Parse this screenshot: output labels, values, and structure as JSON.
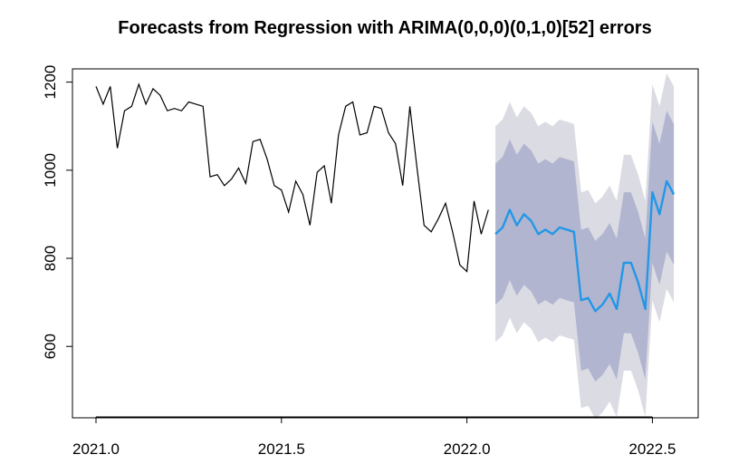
{
  "chart_data": {
    "type": "line",
    "title": "Forecasts from Regression with ARIMA(0,0,0)(0,1,0)[52] errors",
    "xlabel": "",
    "ylabel": "",
    "xlim": [
      2021.0,
      2022.56
    ],
    "ylim": [
      440,
      1230
    ],
    "xticks": [
      2021.0,
      2021.5,
      2022.0,
      2022.5
    ],
    "xtick_labels": [
      "2021.0",
      "2021.5",
      "2022.0",
      "2022.5"
    ],
    "yticks": [
      600,
      800,
      1000,
      1200
    ],
    "ytick_labels": [
      "600",
      "800",
      "1000",
      "1200"
    ],
    "grid": false,
    "legend": "none",
    "series": [
      {
        "role": "history",
        "color": "#000000",
        "x": [
          2021.0,
          2021.0192,
          2021.0385,
          2021.0577,
          2021.0769,
          2021.0962,
          2021.1154,
          2021.1346,
          2021.1538,
          2021.1731,
          2021.1923,
          2021.2115,
          2021.2308,
          2021.25,
          2021.2692,
          2021.2885,
          2021.3077,
          2021.3269,
          2021.3462,
          2021.3654,
          2021.3846,
          2021.4038,
          2021.4231,
          2021.4423,
          2021.4615,
          2021.4808,
          2021.5,
          2021.5192,
          2021.5385,
          2021.5577,
          2021.5769,
          2021.5962,
          2021.6154,
          2021.6346,
          2021.6538,
          2021.6731,
          2021.6923,
          2021.7115,
          2021.7308,
          2021.75,
          2021.7692,
          2021.7885,
          2021.8077,
          2021.8269,
          2021.8462,
          2021.8654,
          2021.8846,
          2021.9038,
          2021.9231,
          2021.9423,
          2021.9615,
          2021.9808,
          2022.0,
          2022.0192,
          2022.0385,
          2022.0577
        ],
        "y": [
          1190,
          1150,
          1190,
          1050,
          1135,
          1145,
          1195,
          1150,
          1185,
          1170,
          1135,
          1140,
          1135,
          1155,
          1150,
          1145,
          985,
          990,
          965,
          980,
          1005,
          970,
          1065,
          1070,
          1025,
          965,
          955,
          905,
          975,
          945,
          875,
          995,
          1010,
          925,
          1080,
          1145,
          1155,
          1080,
          1085,
          1145,
          1140,
          1085,
          1060,
          965,
          1145,
          1005,
          875,
          860,
          890,
          925,
          860,
          785,
          770,
          930,
          855,
          910
        ]
      },
      {
        "role": "forecast",
        "color": "#2297E6",
        "x": [
          2022.0769,
          2022.0962,
          2022.1154,
          2022.1346,
          2022.1538,
          2022.1731,
          2022.1923,
          2022.2115,
          2022.2308,
          2022.25,
          2022.2692,
          2022.2885,
          2022.3077,
          2022.3269,
          2022.3462,
          2022.3654,
          2022.3846,
          2022.4038,
          2022.4231,
          2022.4423,
          2022.4615,
          2022.4808,
          2022.5,
          2022.5192,
          2022.5385,
          2022.5577
        ],
        "y": [
          855,
          870,
          910,
          875,
          900,
          885,
          855,
          865,
          855,
          870,
          865,
          860,
          705,
          710,
          680,
          695,
          720,
          685,
          790,
          790,
          745,
          685,
          950,
          900,
          975,
          945
        ],
        "lower80": [
          695,
          710,
          750,
          715,
          740,
          725,
          695,
          705,
          695,
          710,
          705,
          700,
          545,
          550,
          520,
          535,
          560,
          525,
          630,
          630,
          585,
          525,
          790,
          740,
          815,
          785
        ],
        "upper80": [
          1015,
          1030,
          1070,
          1035,
          1060,
          1045,
          1015,
          1025,
          1015,
          1030,
          1025,
          1020,
          865,
          870,
          840,
          855,
          880,
          845,
          950,
          950,
          905,
          845,
          1110,
          1060,
          1135,
          1105
        ],
        "lower95": [
          610,
          625,
          665,
          630,
          655,
          640,
          610,
          620,
          610,
          625,
          620,
          615,
          460,
          465,
          435,
          450,
          475,
          440,
          545,
          545,
          500,
          440,
          705,
          655,
          730,
          700
        ],
        "upper95": [
          1100,
          1115,
          1155,
          1120,
          1145,
          1130,
          1100,
          1110,
          1100,
          1115,
          1110,
          1105,
          950,
          955,
          925,
          940,
          965,
          930,
          1035,
          1035,
          990,
          930,
          1195,
          1145,
          1220,
          1190
        ]
      }
    ],
    "band_colors": {
      "pi95": "#DBDBE3",
      "pi80": "#B1B5D0"
    }
  }
}
